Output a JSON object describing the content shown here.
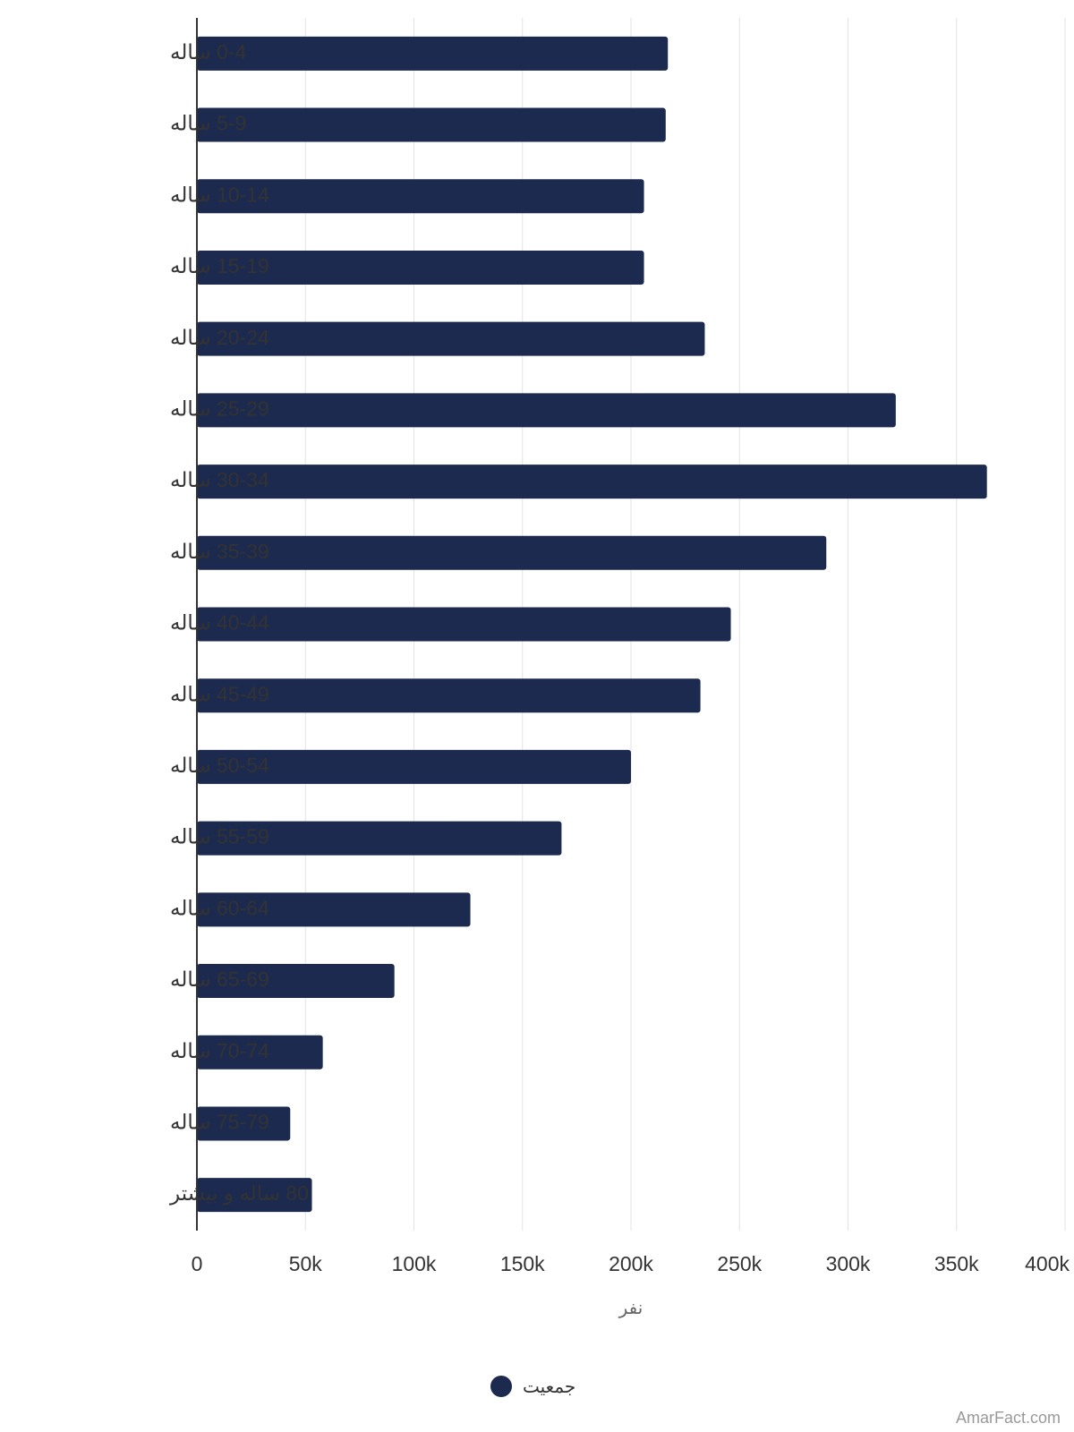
{
  "chart_data": {
    "type": "bar",
    "orientation": "horizontal",
    "categories": [
      "0-4 ساله",
      "5-9 ساله",
      "10-14 ساله",
      "15-19 ساله",
      "20-24 ساله",
      "25-29 ساله",
      "30-34 ساله",
      "35-39 ساله",
      "40-44 ساله",
      "45-49 ساله",
      "50-54 ساله",
      "55-59 ساله",
      "60-64 ساله",
      "65-69 ساله",
      "70-74 ساله",
      "75-79 ساله",
      "80 ساله و بیشتر"
    ],
    "series": [
      {
        "name": "جمعیت",
        "color": "#1b2a4e",
        "values": [
          217000,
          216000,
          206000,
          206000,
          234000,
          322000,
          364000,
          290000,
          246000,
          232000,
          200000,
          168000,
          126000,
          91000,
          58000,
          43000,
          53000
        ]
      }
    ],
    "xlabel": "نفر",
    "ylabel": "",
    "xlim": [
      0,
      400000
    ],
    "xticks": [
      0,
      50000,
      100000,
      150000,
      200000,
      250000,
      300000,
      350000,
      400000
    ],
    "xtick_labels": [
      "0",
      "50k",
      "100k",
      "150k",
      "200k",
      "250k",
      "300k",
      "350k",
      "400k"
    ],
    "grid": true,
    "legend_position": "bottom-center"
  },
  "colors": {
    "bar": "#1b2a4e",
    "grid": "#e3e3e3",
    "axis": "#333333"
  },
  "credit": "AmarFact.com"
}
